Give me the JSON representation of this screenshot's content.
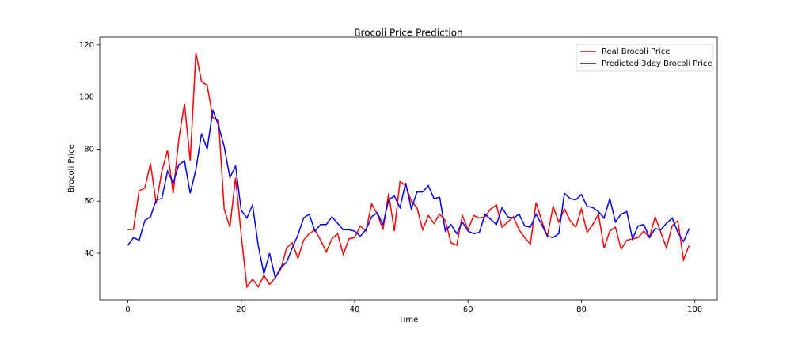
{
  "chart_data": {
    "type": "line",
    "title": "Brocoli Price Prediction",
    "xlabel": "Time",
    "ylabel": "Brocoli Price",
    "x": [
      0,
      1,
      2,
      3,
      4,
      5,
      6,
      7,
      8,
      9,
      10,
      11,
      12,
      13,
      14,
      15,
      16,
      17,
      18,
      19,
      20,
      21,
      22,
      23,
      24,
      25,
      26,
      27,
      28,
      29,
      30,
      31,
      32,
      33,
      34,
      35,
      36,
      37,
      38,
      39,
      40,
      41,
      42,
      43,
      44,
      45,
      46,
      47,
      48,
      49,
      50,
      51,
      52,
      53,
      54,
      55,
      56,
      57,
      58,
      59,
      60,
      61,
      62,
      63,
      64,
      65,
      66,
      67,
      68,
      69,
      70,
      71,
      72,
      73,
      74,
      75,
      76,
      77,
      78,
      79,
      80,
      81,
      82,
      83,
      84,
      85,
      86,
      87,
      88,
      89,
      90,
      91,
      92,
      93,
      94,
      95,
      96,
      97,
      98,
      99
    ],
    "series": [
      {
        "name": "Real Brocoli Price",
        "color": "#ff0000",
        "values": [
          49,
          49.2,
          64,
          65,
          74.5,
          59,
          71.5,
          79.5,
          63,
          84,
          97.5,
          75.5,
          117,
          106,
          104.5,
          92,
          91,
          57,
          50,
          69,
          47,
          27,
          30,
          27,
          31.5,
          28,
          30.5,
          34,
          42,
          44,
          38,
          45,
          47.5,
          49,
          45,
          40.5,
          45.5,
          47.5,
          39.5,
          45.5,
          46,
          50.5,
          48.5,
          59,
          55,
          49,
          63,
          48.5,
          67.5,
          66,
          60,
          57.5,
          49,
          54.5,
          51.5,
          55,
          52.5,
          44,
          43,
          54.5,
          49,
          54.5,
          53.5,
          54,
          57,
          58.5,
          50,
          52,
          54,
          49,
          46,
          43.5,
          59.5,
          52.5,
          46.5,
          58,
          52,
          57,
          52.5,
          50,
          57,
          48,
          51,
          55,
          42,
          48.5,
          50,
          41.5,
          45,
          45.5,
          46,
          48.5,
          46,
          54,
          48,
          42,
          50.5,
          52.5,
          37.5,
          43
        ]
      },
      {
        "name": "Predicted 3day Brocoli Price",
        "color": "#0000ff",
        "values": [
          43,
          46,
          45,
          52.5,
          54,
          60.5,
          61,
          71.5,
          67,
          74,
          75.5,
          63,
          72,
          86,
          80,
          95,
          89,
          81,
          69,
          73.5,
          56.5,
          53.5,
          58.5,
          43,
          32,
          40,
          30.5,
          34.5,
          36.5,
          42,
          47,
          53.5,
          55,
          48.5,
          51,
          51,
          54,
          51.5,
          49,
          49,
          48.5,
          46.5,
          49,
          54,
          55.5,
          51,
          60.5,
          62,
          57.5,
          67,
          57,
          63.5,
          63.5,
          66,
          61,
          61.5,
          48.5,
          51,
          47.5,
          52,
          48.5,
          47.5,
          48,
          55,
          53,
          51,
          57.5,
          54,
          53.5,
          55,
          50.5,
          50,
          55,
          51,
          46.5,
          46,
          47.5,
          63,
          61,
          60.5,
          62.5,
          58,
          57.5,
          56,
          53.5,
          61,
          52,
          55,
          56,
          45.5,
          50.5,
          51,
          46,
          49.5,
          49,
          51.5,
          53.5,
          48,
          44.5,
          49.5
        ]
      }
    ],
    "xlim": [
      -4.95,
      103.95
    ],
    "ylim": [
      22.05,
      123.0
    ],
    "xticks": [
      0,
      20,
      40,
      60,
      80,
      100
    ],
    "yticks": [
      40,
      60,
      80,
      100,
      120
    ],
    "legend": "upper right",
    "grid": false
  }
}
